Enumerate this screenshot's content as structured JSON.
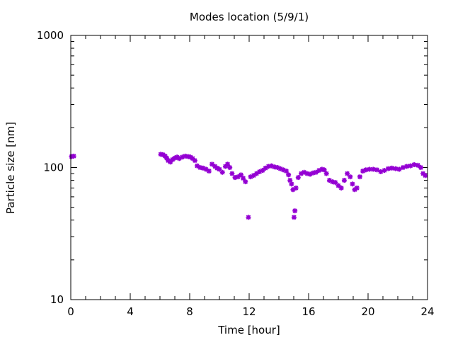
{
  "chart_data": {
    "type": "scatter",
    "title": "Modes location (5/9/1)",
    "xlabel": "Time [hour]",
    "ylabel": "Particle size [nm]",
    "xlim": [
      0,
      24
    ],
    "ylim": [
      10,
      1000
    ],
    "yscale": "log",
    "grid": false,
    "legend": "none",
    "marker_color": "#9400d3",
    "x_ticks": [
      "0",
      "4",
      "8",
      "12",
      "16",
      "20",
      "24"
    ],
    "y_ticks": [
      "10",
      "100",
      "1000"
    ],
    "series": [
      {
        "points": [
          [
            0.05,
            121
          ],
          [
            0.2,
            122
          ],
          [
            6.05,
            126
          ],
          [
            6.2,
            125
          ],
          [
            6.35,
            122
          ],
          [
            6.45,
            118
          ],
          [
            6.55,
            113
          ],
          [
            6.7,
            110
          ],
          [
            6.85,
            115
          ],
          [
            7.0,
            118
          ],
          [
            7.15,
            120
          ],
          [
            7.3,
            117
          ],
          [
            7.5,
            120
          ],
          [
            7.7,
            122
          ],
          [
            7.9,
            121
          ],
          [
            8.05,
            120
          ],
          [
            8.2,
            117
          ],
          [
            8.35,
            113
          ],
          [
            8.5,
            103
          ],
          [
            8.7,
            100
          ],
          [
            8.9,
            99
          ],
          [
            9.1,
            97
          ],
          [
            9.3,
            94
          ],
          [
            9.5,
            106
          ],
          [
            9.7,
            102
          ],
          [
            9.85,
            99
          ],
          [
            10.0,
            97
          ],
          [
            10.2,
            92
          ],
          [
            10.4,
            102
          ],
          [
            10.55,
            106
          ],
          [
            10.7,
            100
          ],
          [
            10.85,
            90
          ],
          [
            11.05,
            84
          ],
          [
            11.25,
            85
          ],
          [
            11.45,
            88
          ],
          [
            11.6,
            83
          ],
          [
            11.75,
            78
          ],
          [
            11.95,
            42
          ],
          [
            12.1,
            85
          ],
          [
            12.3,
            87
          ],
          [
            12.5,
            90
          ],
          [
            12.7,
            93
          ],
          [
            12.9,
            95
          ],
          [
            13.1,
            99
          ],
          [
            13.3,
            102
          ],
          [
            13.5,
            103
          ],
          [
            13.7,
            101
          ],
          [
            13.9,
            100
          ],
          [
            14.1,
            98
          ],
          [
            14.3,
            96
          ],
          [
            14.5,
            94
          ],
          [
            14.65,
            88
          ],
          [
            14.75,
            80
          ],
          [
            14.85,
            75
          ],
          [
            14.95,
            68
          ],
          [
            15.02,
            42
          ],
          [
            15.08,
            47
          ],
          [
            15.15,
            70
          ],
          [
            15.3,
            84
          ],
          [
            15.5,
            90
          ],
          [
            15.7,
            92
          ],
          [
            15.9,
            90
          ],
          [
            16.1,
            89
          ],
          [
            16.3,
            91
          ],
          [
            16.5,
            92
          ],
          [
            16.7,
            95
          ],
          [
            16.9,
            97
          ],
          [
            17.05,
            96
          ],
          [
            17.2,
            90
          ],
          [
            17.4,
            80
          ],
          [
            17.6,
            78
          ],
          [
            17.8,
            77
          ],
          [
            18.0,
            73
          ],
          [
            18.2,
            70
          ],
          [
            18.4,
            80
          ],
          [
            18.6,
            90
          ],
          [
            18.8,
            85
          ],
          [
            18.95,
            75
          ],
          [
            19.1,
            68
          ],
          [
            19.25,
            70
          ],
          [
            19.45,
            85
          ],
          [
            19.65,
            94
          ],
          [
            19.85,
            96
          ],
          [
            20.1,
            97
          ],
          [
            20.35,
            97
          ],
          [
            20.6,
            96
          ],
          [
            20.85,
            93
          ],
          [
            21.1,
            95
          ],
          [
            21.35,
            98
          ],
          [
            21.6,
            99
          ],
          [
            21.85,
            98
          ],
          [
            22.1,
            97
          ],
          [
            22.35,
            100
          ],
          [
            22.6,
            102
          ],
          [
            22.85,
            103
          ],
          [
            23.1,
            105
          ],
          [
            23.35,
            104
          ],
          [
            23.55,
            100
          ],
          [
            23.7,
            90
          ],
          [
            23.85,
            87
          ]
        ]
      }
    ]
  }
}
